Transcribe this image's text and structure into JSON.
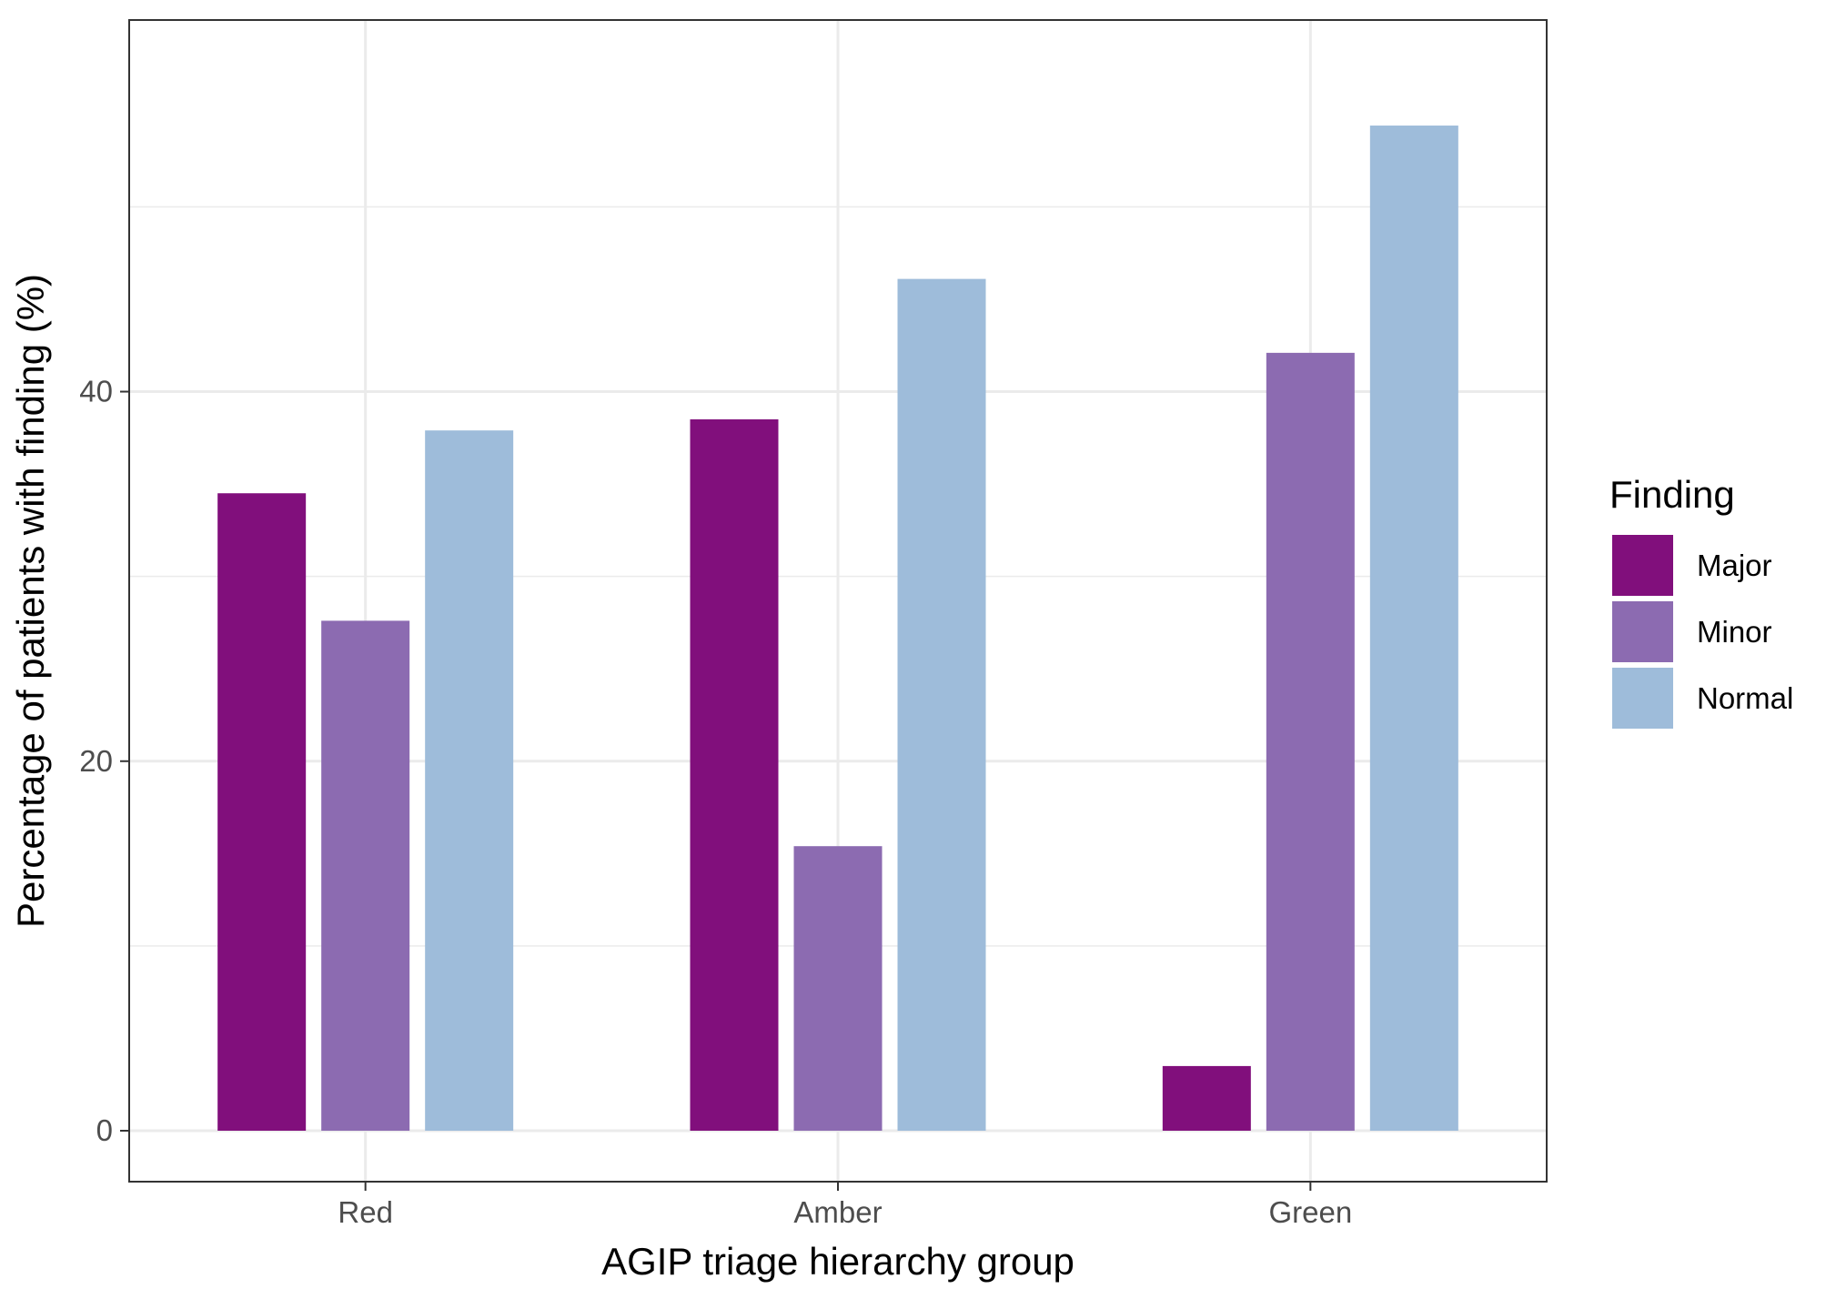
{
  "chart_data": {
    "type": "bar",
    "categories": [
      "Red",
      "Amber",
      "Green"
    ],
    "series": [
      {
        "name": "Major",
        "color": "#810F7C",
        "values": [
          34.5,
          38.5,
          3.5
        ]
      },
      {
        "name": "Minor",
        "color": "#8C6BB1",
        "values": [
          27.6,
          15.4,
          42.1
        ]
      },
      {
        "name": "Normal",
        "color": "#9EBCDA",
        "values": [
          37.9,
          46.1,
          54.4
        ]
      }
    ],
    "xlabel": "AGIP triage hierarchy group",
    "ylabel": "Percentage of patients with finding (%)",
    "ylim": [
      0,
      57.7
    ],
    "yticks": [
      0,
      20,
      40
    ],
    "grid": true,
    "legend": {
      "title": "Finding",
      "position": "right"
    }
  }
}
